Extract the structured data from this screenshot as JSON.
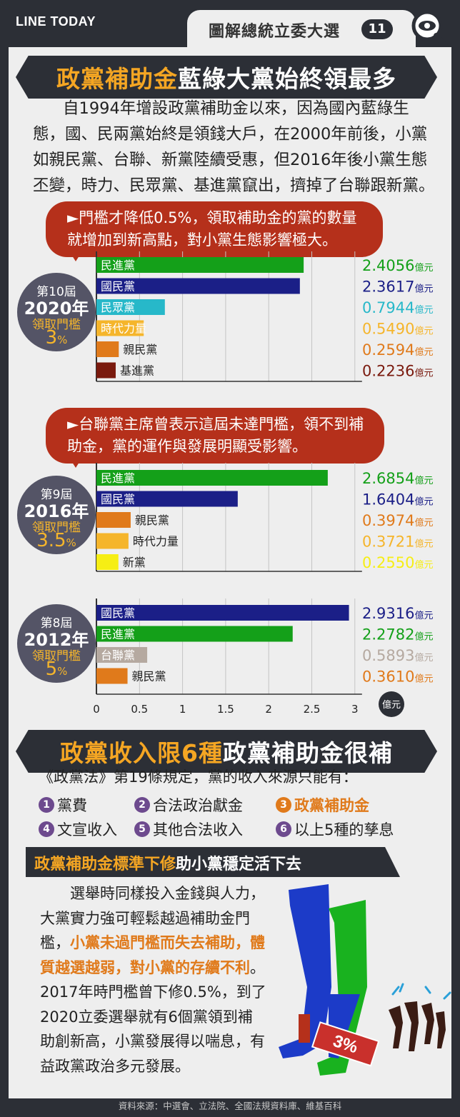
{
  "header": {
    "brand": "LINE TODAY",
    "series_title": "圖解總統立委大選",
    "series_number": "11",
    "icon": "magnifier-eye-icon"
  },
  "section1": {
    "title_part1": "政黨補助金",
    "title_part2": "藍綠大黨始終領最多",
    "intro": "自1994年增設政黨補助金以來，因為國內藍綠生態，國、民兩黨始終是領錢大戶，在2000年前後，小黨如親民黨、台聯、新黨陸續受惠，但2016年後小黨生態丕變，時力、民眾黨、基進黨竄出，擠掉了台聯跟新黨。"
  },
  "notes": {
    "bubble_2020": "►門檻才降低0.5%，領取補助金的黨的數量就增加到新高點，對小黨生態影響極大。",
    "bubble_2016": "►台聯黨主席曾表示這屆未達門檻，領不到補助金，黨的運作與發展明顯受影響。"
  },
  "chart_data": {
    "type": "bar",
    "orientation": "horizontal",
    "x_unit": "億元",
    "xlim": [
      0,
      3
    ],
    "x_ticks": [
      "0",
      "0.5",
      "1",
      "1.5",
      "2",
      "2.5",
      "3"
    ],
    "grid": true,
    "groups": [
      {
        "term": "第10屆",
        "year": "2020年",
        "threshold_label": "領取門檻",
        "threshold": "3",
        "threshold_unit": "%",
        "bars": [
          {
            "party": "民進黨",
            "value": 2.4056,
            "value_label": "2.4056",
            "unit": "億元",
            "color": "#14a019",
            "label_inside": true
          },
          {
            "party": "國民黨",
            "value": 2.3617,
            "value_label": "2.3617",
            "unit": "億元",
            "color": "#1b1f87",
            "label_inside": true
          },
          {
            "party": "民眾黨",
            "value": 0.7944,
            "value_label": "0.7944",
            "unit": "億元",
            "color": "#27b8c9",
            "label_inside": true
          },
          {
            "party": "時代力量",
            "value": 0.549,
            "value_label": "0.5490",
            "unit": "億元",
            "color": "#f5b52b",
            "label_inside": true
          },
          {
            "party": "親民黨",
            "value": 0.2594,
            "value_label": "0.2594",
            "unit": "億元",
            "color": "#e07a1b",
            "label_inside": false
          },
          {
            "party": "基進黨",
            "value": 0.2236,
            "value_label": "0.2236",
            "unit": "億元",
            "color": "#7a1a0e",
            "label_inside": false
          }
        ]
      },
      {
        "term": "第9屆",
        "year": "2016年",
        "threshold_label": "領取門檻",
        "threshold": "3.5",
        "threshold_unit": "%",
        "bars": [
          {
            "party": "民進黨",
            "value": 2.6854,
            "value_label": "2.6854",
            "unit": "億元",
            "color": "#14a019",
            "label_inside": true
          },
          {
            "party": "國民黨",
            "value": 1.6404,
            "value_label": "1.6404",
            "unit": "億元",
            "color": "#1b1f87",
            "label_inside": true
          },
          {
            "party": "親民黨",
            "value": 0.3974,
            "value_label": "0.3974",
            "unit": "億元",
            "color": "#e07a1b",
            "label_inside": false
          },
          {
            "party": "時代力量",
            "value": 0.3721,
            "value_label": "0.3721",
            "unit": "億元",
            "color": "#f5b52b",
            "label_inside": false
          },
          {
            "party": "新黨",
            "value": 0.255,
            "value_label": "0.2550",
            "unit": "億元",
            "color": "#f6ee14",
            "label_inside": false
          }
        ]
      },
      {
        "term": "第8屆",
        "year": "2012年",
        "threshold_label": "領取門檻",
        "threshold": "5",
        "threshold_unit": "%",
        "bars": [
          {
            "party": "國民黨",
            "value": 2.9316,
            "value_label": "2.9316",
            "unit": "億元",
            "color": "#1b1f87",
            "label_inside": true
          },
          {
            "party": "民進黨",
            "value": 2.2782,
            "value_label": "2.2782",
            "unit": "億元",
            "color": "#14a019",
            "label_inside": true
          },
          {
            "party": "台聯黨",
            "value": 0.5893,
            "value_label": "0.5893",
            "unit": "億元",
            "color": "#b5a9a0",
            "label_inside": true
          },
          {
            "party": "親民黨",
            "value": 0.361,
            "value_label": "0.3610",
            "unit": "億元",
            "color": "#e07a1b",
            "label_inside": false
          }
        ]
      }
    ]
  },
  "section2": {
    "title_part1": "政黨收入限6種",
    "title_part2": "政黨補助金很補",
    "intro": "《政黨法》第19條規定，黨的收入來源只能有：",
    "sources": [
      {
        "num": "1",
        "label": "黨費",
        "highlight": false
      },
      {
        "num": "2",
        "label": "合法政治獻金",
        "highlight": false
      },
      {
        "num": "3",
        "label": "政黨補助金",
        "highlight": true
      },
      {
        "num": "4",
        "label": "文宣收入",
        "highlight": false
      },
      {
        "num": "5",
        "label": "其他合法收入",
        "highlight": false
      },
      {
        "num": "6",
        "label": "以上5種的孳息",
        "highlight": false
      }
    ],
    "subtitle_part1": "政黨補助金標準下修",
    "subtitle_part2": "助小黨穩定活下去",
    "closing_part1": "選舉時同樣投入金錢與人力，大黨實力強可輕鬆越過補助金門檻，",
    "closing_highlight": "小黨未過門檻而失去補助，體質越選越弱，對小黨的存續不利",
    "closing_part2": "。2017年時門檻曾下修0.5%，到了2020立委選舉就有6個黨領到補助創新高，小黨發展得以喘息，有益政黨政治多元發展。",
    "illustration_hurdle": "3%"
  },
  "footer": {
    "source": "資料來源：中選會、立法院、全國法規資料庫、維基百科"
  },
  "colors": {
    "background": "#2c2f36",
    "panel": "#eeeeee",
    "accent_orange": "#f5a623",
    "bubble_red": "#b5301b",
    "circle_gray": "#545466",
    "dpp_green": "#14a019",
    "kmt_blue": "#1b1f87"
  }
}
